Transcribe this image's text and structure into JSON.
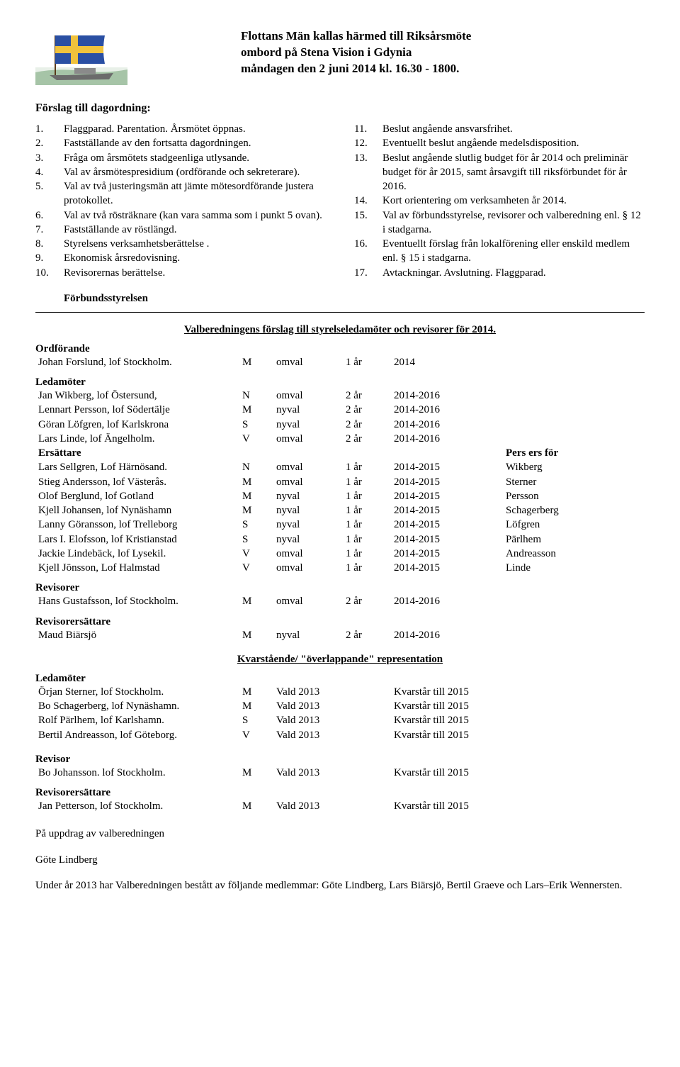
{
  "header": {
    "line1": "Flottans Män kallas härmed till Riksårsmöte",
    "line2": "ombord på Stena Vision i Gdynia",
    "line3": "måndagen den 2 juni 2014 kl. 16.30 - 1800."
  },
  "subtitle": "Förslag till dagordning:",
  "agenda_left": [
    {
      "n": "1.",
      "t": "Flaggparad. Parentation. Årsmötet öppnas."
    },
    {
      "n": "2.",
      "t": "Fastställande av den fortsatta dagordningen."
    },
    {
      "n": "3.",
      "t": "Fråga om årsmötets stadgeenliga utlysande."
    },
    {
      "n": "4.",
      "t": "Val av årsmötespresidium (ordförande och sekreterare)."
    },
    {
      "n": "5.",
      "t": "Val av två justeringsmän att jämte mötesordförande justera protokollet."
    },
    {
      "n": "6.",
      "t": "Val av två rösträknare (kan vara samma som i punkt 5 ovan)."
    },
    {
      "n": "7.",
      "t": "Fastställande av röstlängd."
    },
    {
      "n": "8.",
      "t": "Styrelsens verksamhetsberättelse ."
    },
    {
      "n": "9.",
      "t": "Ekonomisk årsredovisning."
    },
    {
      "n": "10.",
      "t": "Revisorernas berättelse."
    }
  ],
  "agenda_right": [
    {
      "n": "11.",
      "t": "Beslut angående ansvarsfrihet."
    },
    {
      "n": "12.",
      "t": "Eventuellt beslut angående medelsdisposition."
    },
    {
      "n": "13.",
      "t": "Beslut angående slutlig budget för år 2014 och preliminär budget för år 2015, samt årsavgift till riksförbundet för år 2016."
    },
    {
      "n": "14.",
      "t": "Kort orientering om verksamheten år 2014."
    },
    {
      "n": "15.",
      "t": "Val av förbundsstyrelse, revisorer och valberedning enl. § 12 i stadgarna."
    },
    {
      "n": "16.",
      "t": "Eventuellt förslag från lokalförening eller enskild medlem enl. § 15 i stadgarna."
    },
    {
      "n": "17.",
      "t": "Avtackningar. Avslutning. Flaggparad."
    }
  ],
  "board_signature": "Förbundsstyrelsen",
  "proposal_title": "Valberedningens förslag till styrelseledamöter och revisorer för 2014.",
  "labels": {
    "chair": "Ordförande",
    "members": "Ledamöter",
    "subs": "Ersättare",
    "subs_for": "Pers ers för",
    "auditors": "Revisorer",
    "auditor_subs": "Revisorersättare",
    "auditor": "Revisor"
  },
  "chair_row": {
    "name": "Johan Forslund, lof Stockholm.",
    "reg": "M",
    "act": "omval",
    "term": "1 år",
    "yrs": "2014",
    "note": ""
  },
  "members_rows": [
    {
      "name": "Jan Wikberg, lof Östersund,",
      "reg": "N",
      "act": "omval",
      "term": "2 år",
      "yrs": "2014-2016",
      "note": ""
    },
    {
      "name": "Lennart Persson, lof Södertälje",
      "reg": "M",
      "act": "nyval",
      "term": "2 år",
      "yrs": "2014-2016",
      "note": ""
    },
    {
      "name": "Göran Löfgren, lof Karlskrona",
      "reg": "S",
      "act": "nyval",
      "term": "2 år",
      "yrs": "2014-2016",
      "note": ""
    },
    {
      "name": "Lars Linde, lof Ängelholm.",
      "reg": "V",
      "act": "omval",
      "term": "2 år",
      "yrs": "2014-2016",
      "note": ""
    }
  ],
  "subs_rows": [
    {
      "name": "Lars Sellgren, Lof Härnösand.",
      "reg": "N",
      "act": "omval",
      "term": "1 år",
      "yrs": "2014-2015",
      "note": "Wikberg"
    },
    {
      "name": "Stieg Andersson, lof Västerås.",
      "reg": "M",
      "act": "omval",
      "term": "1 år",
      "yrs": "2014-2015",
      "note": "Sterner"
    },
    {
      "name": "Olof Berglund, lof Gotland",
      "reg": "M",
      "act": "nyval",
      "term": "1 år",
      "yrs": "2014-2015",
      "note": "Persson"
    },
    {
      "name": "Kjell Johansen, lof Nynäshamn",
      "reg": "M",
      "act": "nyval",
      "term": "1 år",
      "yrs": "2014-2015",
      "note": "Schagerberg"
    },
    {
      "name": "Lanny Göransson, lof Trelleborg",
      "reg": "S",
      "act": "nyval",
      "term": "1 år",
      "yrs": "2014-2015",
      "note": "Löfgren"
    },
    {
      "name": "Lars I. Elofsson, lof Kristianstad",
      "reg": "S",
      "act": "nyval",
      "term": "1 år",
      "yrs": "2014-2015",
      "note": "Pärlhem"
    },
    {
      "name": "Jackie Lindebäck, lof Lysekil.",
      "reg": "V",
      "act": "omval",
      "term": "1 år",
      "yrs": "2014-2015",
      "note": "Andreasson"
    },
    {
      "name": "Kjell Jönsson, Lof Halmstad",
      "reg": "V",
      "act": "omval",
      "term": "1 år",
      "yrs": "2014-2015",
      "note": "Linde"
    }
  ],
  "auditor_row": {
    "name": "Hans Gustafsson, lof Stockholm.",
    "reg": "M",
    "act": "omval",
    "term": "2 år",
    "yrs": "2014-2016",
    "note": ""
  },
  "auditor_sub_row": {
    "name": "Maud Biärsjö",
    "reg": "M",
    "act": "nyval",
    "term": "2 år",
    "yrs": "2014-2016",
    "note": ""
  },
  "remaining_title": "Kvarstående/ \"överlappande\" representation",
  "remaining_members": [
    {
      "name": "Örjan Sterner, lof Stockholm.",
      "reg": "M",
      "act": "Vald 2013",
      "term": "",
      "yrs": "Kvarstår till 2015",
      "note": ""
    },
    {
      "name": "Bo Schagerberg, lof Nynäshamn.",
      "reg": "M",
      "act": "Vald 2013",
      "term": "",
      "yrs": "Kvarstår till 2015",
      "note": ""
    },
    {
      "name": "Rolf Pärlhem, lof Karlshamn.",
      "reg": "S",
      "act": "Vald 2013",
      "term": "",
      "yrs": "Kvarstår till 2015",
      "note": ""
    },
    {
      "name": "Bertil Andreasson, lof Göteborg.",
      "reg": "V",
      "act": "Vald 2013",
      "term": "",
      "yrs": "Kvarstår till 2015",
      "note": ""
    }
  ],
  "remaining_auditor": {
    "name": "Bo Johansson. lof Stockholm.",
    "reg": "M",
    "act": "Vald 2013",
    "term": "",
    "yrs": "Kvarstår till 2015",
    "note": ""
  },
  "remaining_auditor_sub_label": " Revisorersättare",
  "remaining_auditor_sub": {
    "name": "Jan Petterson, lof Stockholm.",
    "reg": "M",
    "act": "Vald 2013",
    "term": "",
    "yrs": "Kvarstår till 2015",
    "note": ""
  },
  "closing": {
    "behalf": "På uppdrag av valberedningen",
    "signer": "Göte Lindberg",
    "footer": "Under år 2013 har Valberedningen bestått av följande medlemmar: Göte Lindberg, Lars Biärsjö, Bertil Graeve och Lars–Erik Wennersten."
  },
  "logo": {
    "flag_blue": "#2a4fa3",
    "flag_yellow": "#f0c23c",
    "sea": "#7aa77b",
    "hull": "#6b6b6b"
  }
}
